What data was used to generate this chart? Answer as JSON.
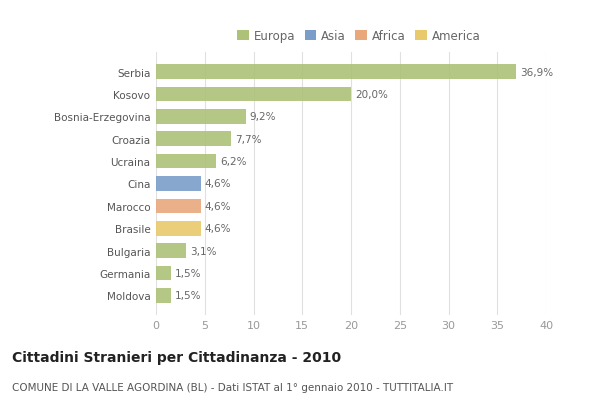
{
  "categories": [
    "Serbia",
    "Kosovo",
    "Bosnia-Erzegovina",
    "Croazia",
    "Ucraina",
    "Cina",
    "Marocco",
    "Brasile",
    "Bulgaria",
    "Germania",
    "Moldova"
  ],
  "values": [
    36.9,
    20.0,
    9.2,
    7.7,
    6.2,
    4.6,
    4.6,
    4.6,
    3.1,
    1.5,
    1.5
  ],
  "labels": [
    "36,9%",
    "20,0%",
    "9,2%",
    "7,7%",
    "6,2%",
    "4,6%",
    "4,6%",
    "4,6%",
    "3,1%",
    "1,5%",
    "1,5%"
  ],
  "colors": [
    "#adc178",
    "#adc178",
    "#adc178",
    "#adc178",
    "#adc178",
    "#7b9ec9",
    "#e8a87c",
    "#e8c96b",
    "#adc178",
    "#adc178",
    "#adc178"
  ],
  "legend_labels": [
    "Europa",
    "Asia",
    "Africa",
    "America"
  ],
  "legend_colors": [
    "#adc178",
    "#7b9ec9",
    "#e8a87c",
    "#e8c96b"
  ],
  "title": "Cittadini Stranieri per Cittadinanza - 2010",
  "subtitle": "COMUNE DI LA VALLE AGORDINA (BL) - Dati ISTAT al 1° gennaio 2010 - TUTTITALIA.IT",
  "xlim": [
    0,
    40
  ],
  "xticks": [
    0,
    5,
    10,
    15,
    20,
    25,
    30,
    35,
    40
  ],
  "bg_color": "#ffffff",
  "grid_color": "#e0e0e0",
  "bar_height": 0.65,
  "title_fontsize": 10,
  "subtitle_fontsize": 7.5,
  "label_fontsize": 7.5,
  "ytick_fontsize": 7.5,
  "xtick_fontsize": 8,
  "legend_fontsize": 8.5
}
